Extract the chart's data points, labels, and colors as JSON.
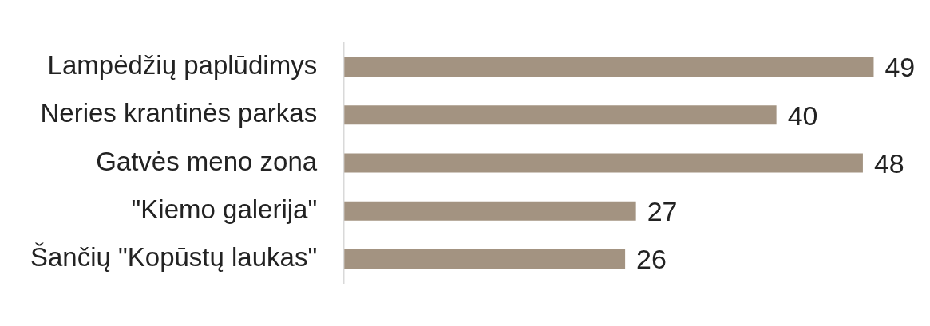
{
  "chart_data": {
    "type": "bar",
    "orientation": "horizontal",
    "categories": [
      "Lampėdžių paplūdimys",
      "Neries krantinės parkas",
      "Gatvės meno zona",
      "\"Kiemo galerija\"",
      "Šančių \"Kopūstų laukas\""
    ],
    "values": [
      49,
      40,
      48,
      27,
      26
    ],
    "color": "#a39381",
    "data_labels": true,
    "grid": false,
    "legend": false
  }
}
